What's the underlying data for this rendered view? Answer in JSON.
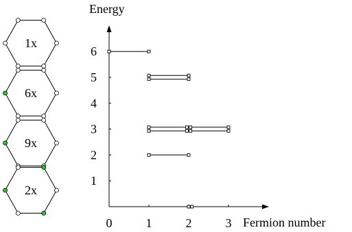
{
  "chart_data": {
    "type": "scatter",
    "ylabel": "Energy",
    "xlabel": "Fermion number",
    "x_ticks": [
      "0",
      "1",
      "2",
      "3"
    ],
    "y_ticks": [
      "1",
      "2",
      "3",
      "4",
      "5",
      "6"
    ],
    "xlim": [
      0,
      3.5
    ],
    "ylim": [
      0,
      6.8
    ],
    "levels": [
      {
        "energy": 6,
        "x_from": 0,
        "x_to": 1,
        "rails": 1
      },
      {
        "energy": 5,
        "x_from": 1,
        "x_to": 2,
        "rails": 2
      },
      {
        "energy": 3,
        "x_from": 1,
        "x_to": 3,
        "rails": 2
      },
      {
        "energy": 2,
        "x_from": 1,
        "x_to": 2,
        "rails": 1
      }
    ],
    "zero_states": [
      2,
      2.1
    ],
    "hexagons": [
      {
        "multiplicity": "1x",
        "energy": 6,
        "filled_vertices": []
      },
      {
        "multiplicity": "6x",
        "energy": 5,
        "filled_vertices": [
          3
        ]
      },
      {
        "multiplicity": "9x",
        "energy": 3,
        "filled_vertices": [
          3
        ]
      },
      {
        "multiplicity": "2x",
        "energy": 2,
        "filled_vertices": [
          1,
          3,
          5
        ]
      }
    ],
    "colors": {
      "filled_vertex": "#22cc22",
      "empty_vertex": "#ffffff",
      "line": "#000000"
    }
  }
}
